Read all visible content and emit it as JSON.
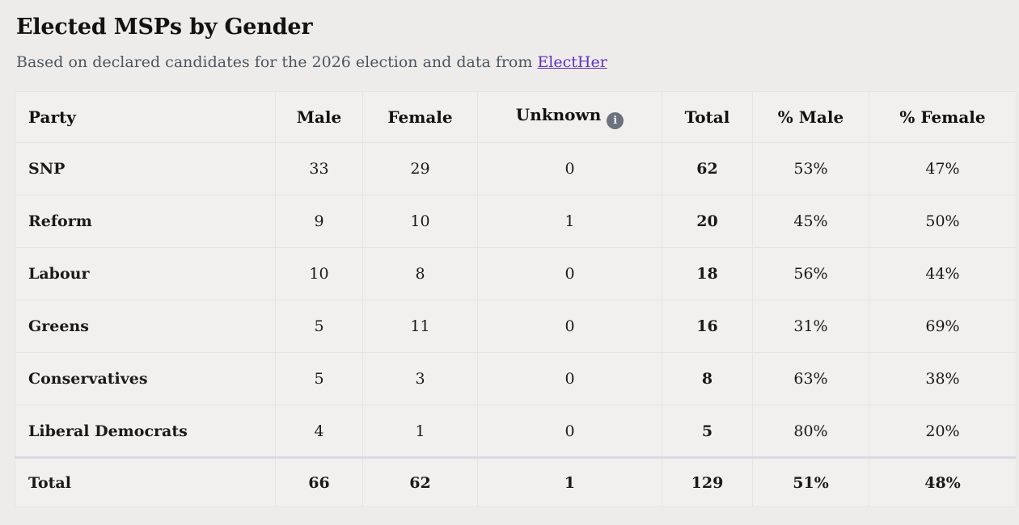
{
  "header": {
    "subtitle_prefix": "Based on declared candidates for the 2026 election and data from ",
    "link_label": "ElectHer"
  },
  "table_meta": {
    "info_icon_glyph": "i"
  },
  "colors": {
    "link_purple": "#6330c4",
    "info_icon_bg": "#6b7380",
    "page_background": "#edecea",
    "cell_background": "#f1f0ee",
    "total_divider": "#d8dbe0"
  },
  "chart_data": {
    "type": "table",
    "title": "Elected MSPs by Gender",
    "source_note": "Based on declared candidates for the 2026 election and data from ElectHer",
    "columns": [
      "Party",
      "Male",
      "Female",
      "Unknown",
      "Total",
      "% Male",
      "% Female"
    ],
    "rows": [
      [
        "SNP",
        33,
        29,
        0,
        62,
        "53%",
        "47%"
      ],
      [
        "Reform",
        9,
        10,
        1,
        20,
        "45%",
        "50%"
      ],
      [
        "Labour",
        10,
        8,
        0,
        18,
        "56%",
        "44%"
      ],
      [
        "Greens",
        5,
        11,
        0,
        16,
        "31%",
        "69%"
      ],
      [
        "Conservatives",
        5,
        3,
        0,
        8,
        "63%",
        "38%"
      ],
      [
        "Liberal Democrats",
        4,
        1,
        0,
        5,
        "80%",
        "20%"
      ]
    ],
    "totals_row": [
      "Total",
      66,
      62,
      1,
      129,
      "51%",
      "48%"
    ]
  }
}
